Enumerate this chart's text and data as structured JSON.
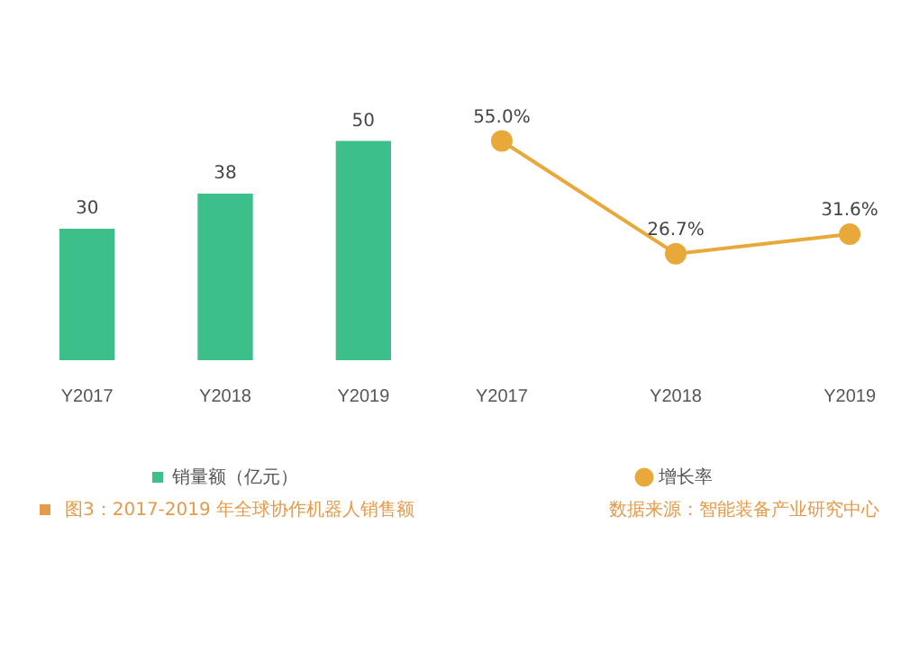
{
  "chart_data": [
    {
      "type": "bar",
      "categories": [
        "Y2017",
        "Y2018",
        "Y2019"
      ],
      "series": [
        {
          "name": "销量额（亿元）",
          "color": "#3dbf8a",
          "values": [
            30,
            38,
            50
          ]
        }
      ],
      "data_labels": true,
      "legend": "bottom",
      "grid": false,
      "annotations": [
        "图3：2017-2019 年全球协作机器人销售额"
      ]
    },
    {
      "type": "line",
      "categories": [
        "Y2017",
        "Y2018",
        "Y2019"
      ],
      "series": [
        {
          "name": "增长率",
          "color": "#e8a93a",
          "values": [
            55.0,
            26.7,
            31.6
          ],
          "value_labels": [
            "55.0%",
            "26.7%",
            "31.6%"
          ]
        }
      ],
      "marker": "circle",
      "legend": "bottom",
      "grid": false,
      "annotations": [
        "数据来源：智能装备产业研究中心"
      ]
    }
  ]
}
